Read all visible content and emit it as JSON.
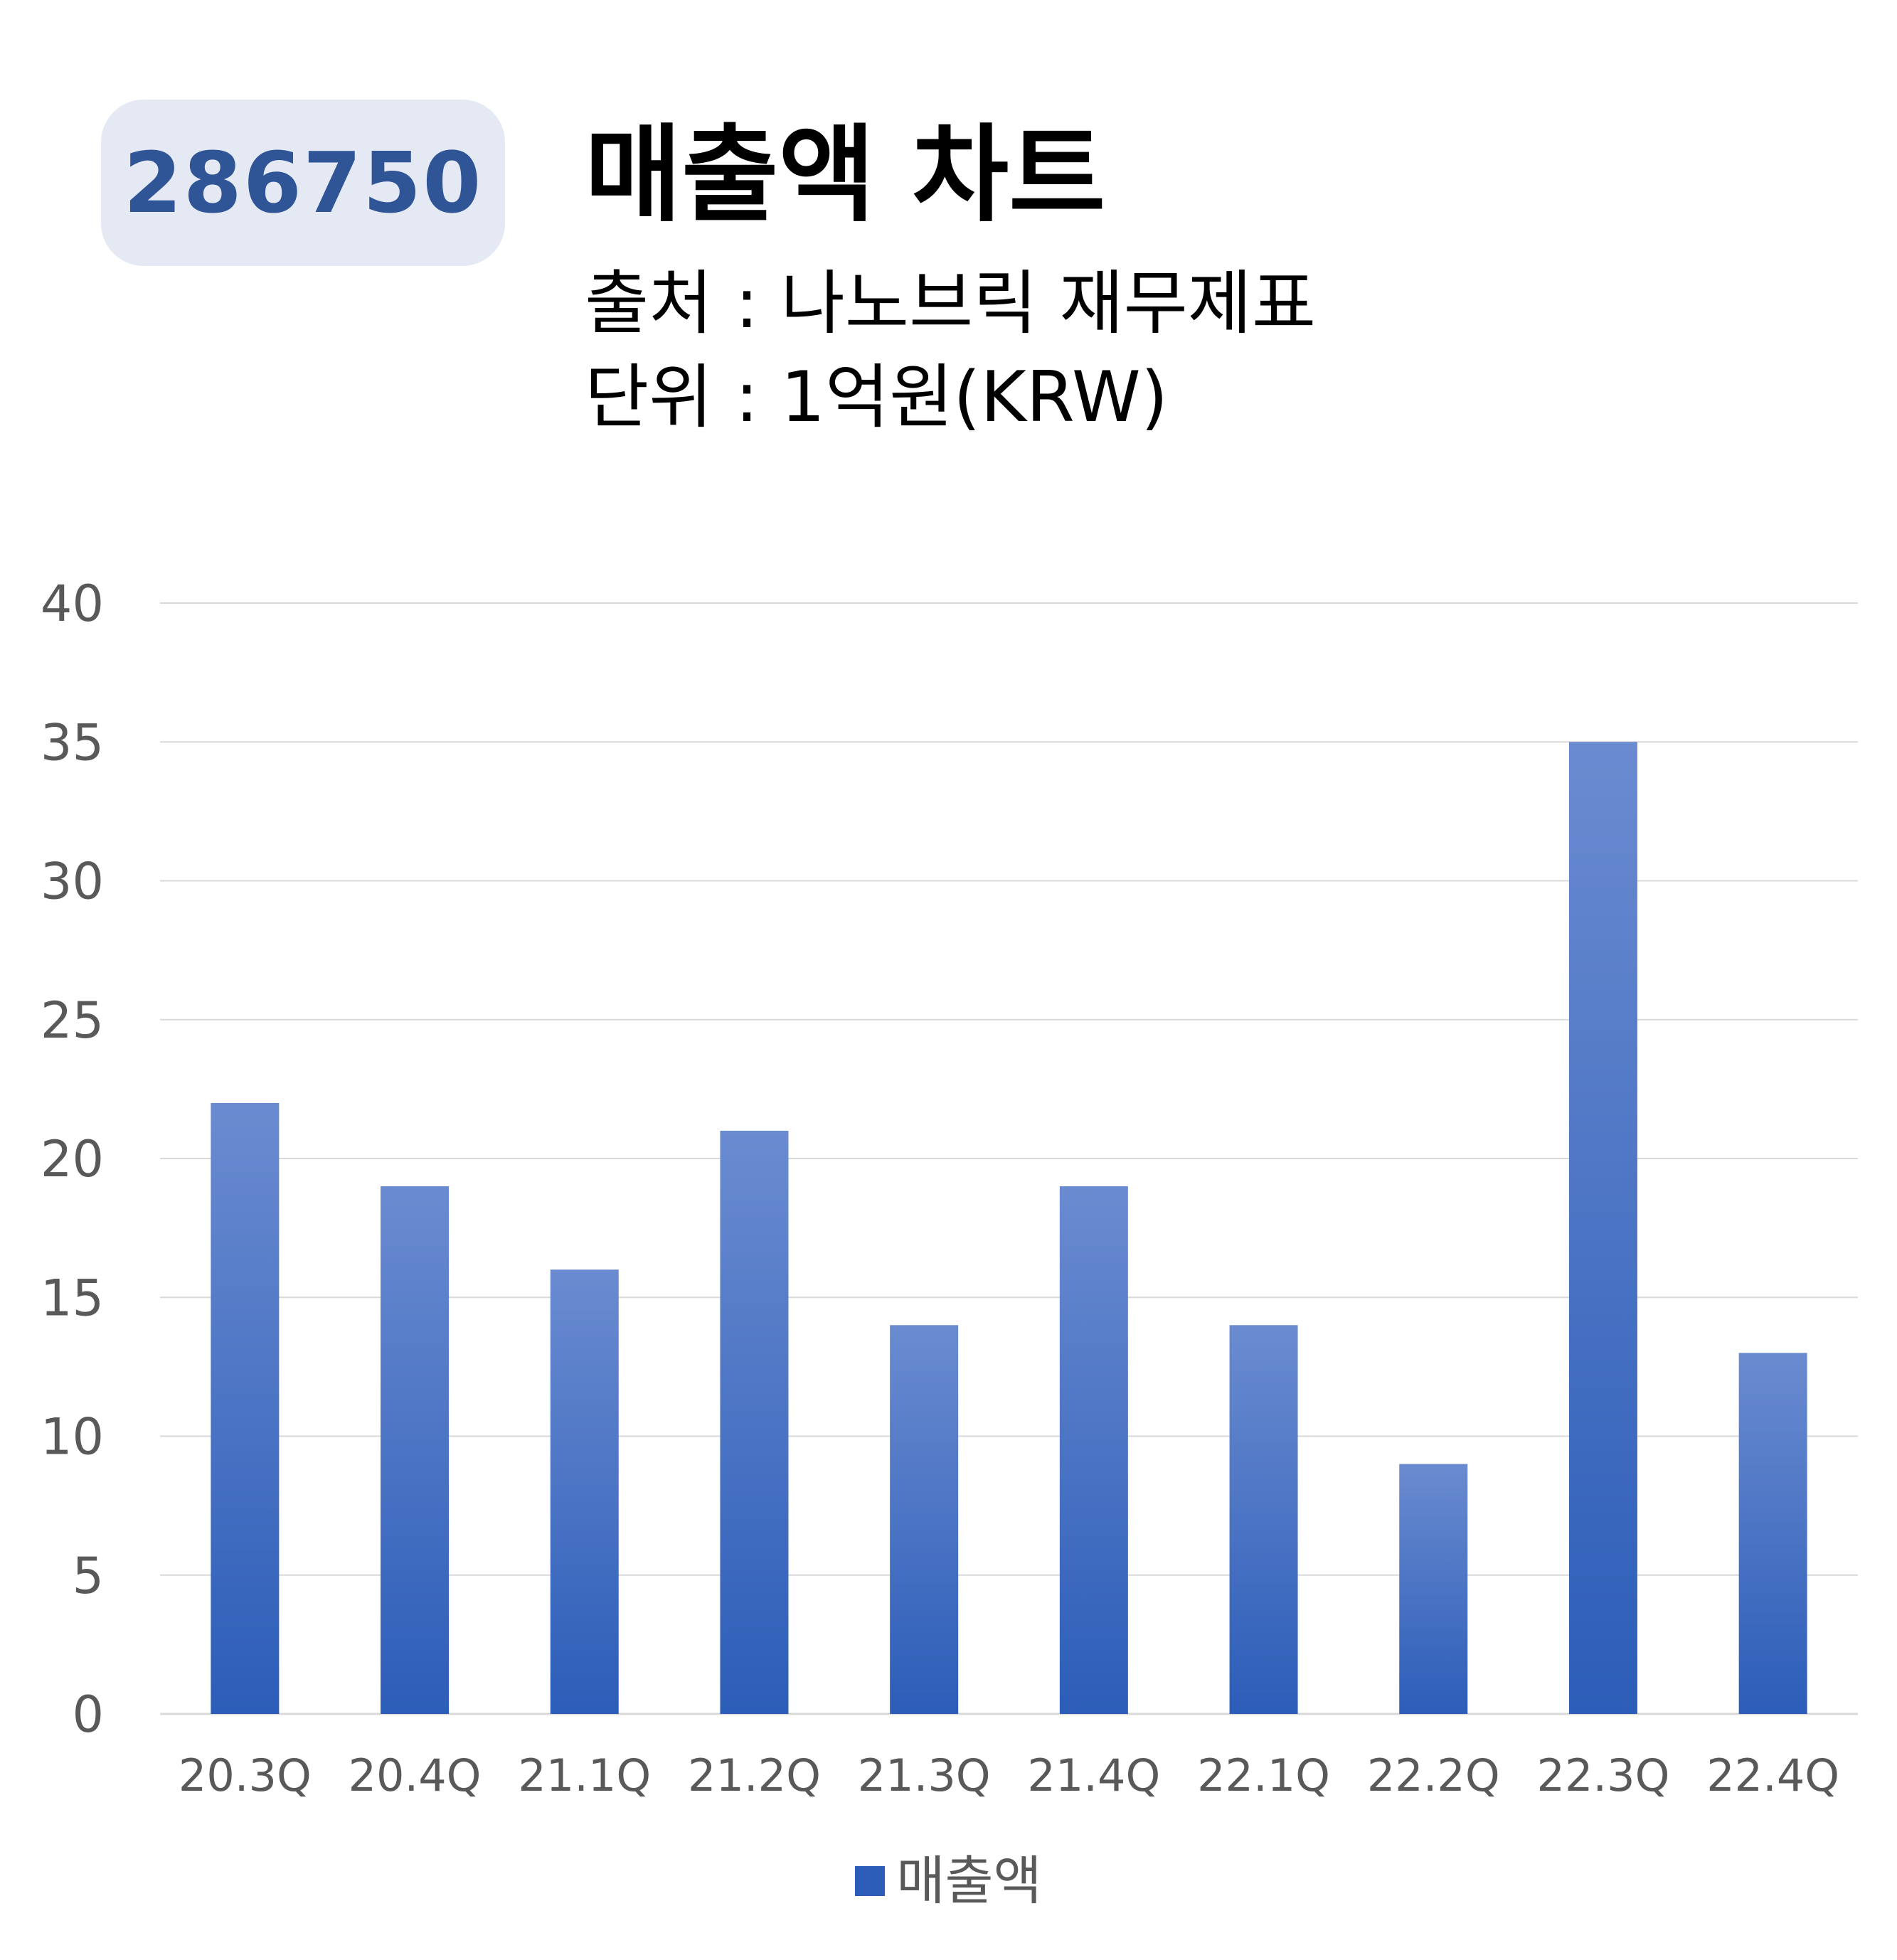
{
  "header": {
    "stock_code": "286750",
    "title": "매출액 차트",
    "source_line": "출처 : 나노브릭 재무제표",
    "unit_line": "단위 : 1억원(KRW)"
  },
  "colors": {
    "badge_background": "#e4e9f4",
    "badge_text": "#2f5597",
    "bar_top": "#6a8bd0",
    "bar_bottom": "#2c5db8",
    "gridline": "#d9d9d9",
    "tick_text": "#595959"
  },
  "chart_data": {
    "type": "bar",
    "categories": [
      "20.3Q",
      "20.4Q",
      "21.1Q",
      "21.2Q",
      "21.3Q",
      "21.4Q",
      "22.1Q",
      "22.2Q",
      "22.3Q",
      "22.4Q"
    ],
    "series": [
      {
        "name": "매출액",
        "values": [
          22,
          19,
          16,
          21,
          14,
          19,
          14,
          9,
          35,
          13
        ]
      }
    ],
    "ylim": [
      0,
      40
    ],
    "yticks": [
      0,
      5,
      10,
      15,
      20,
      25,
      30,
      35,
      40
    ],
    "grid": true,
    "legend_position": "bottom"
  }
}
